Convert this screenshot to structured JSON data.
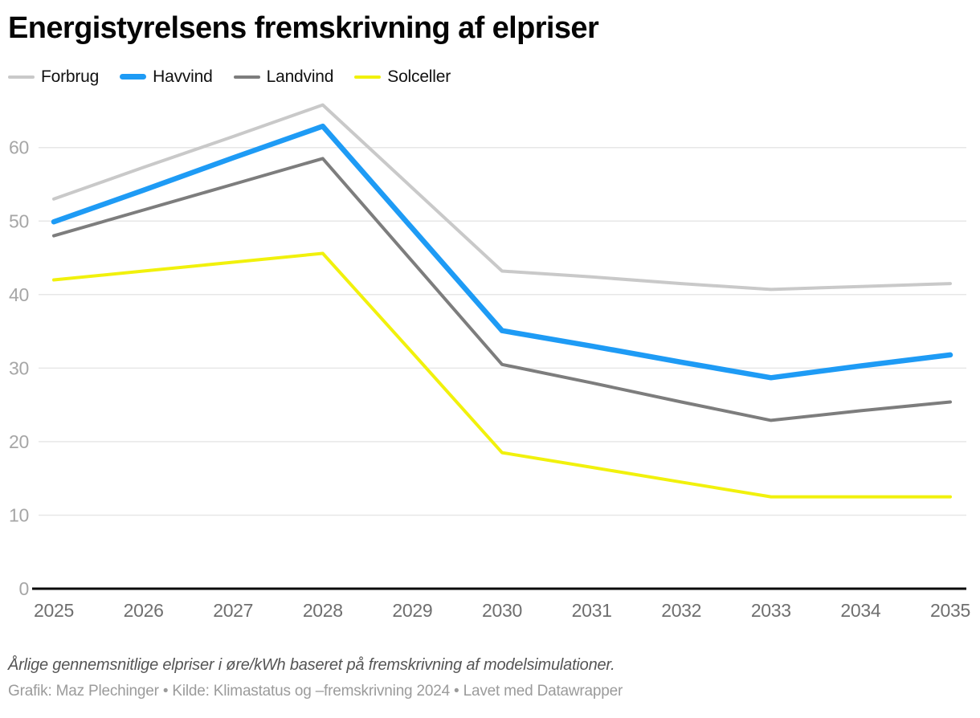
{
  "header": {
    "title": "Energistyrelsens fremskrivning af elpriser"
  },
  "chart_data": {
    "type": "line",
    "title": "Energistyrelsens fremskrivning af elpriser",
    "x": [
      2025,
      2026,
      2027,
      2028,
      2029,
      2030,
      2031,
      2032,
      2033,
      2034,
      2035
    ],
    "series": [
      {
        "name": "Forbrug",
        "color": "#c9c9c9",
        "stroke_width": 4,
        "values": [
          53.0,
          57.3,
          61.5,
          65.8,
          54.5,
          43.2,
          42.4,
          41.5,
          40.7,
          41.1,
          41.5
        ]
      },
      {
        "name": "Havvind",
        "color": "#1e9bf5",
        "stroke_width": 6.5,
        "values": [
          49.9,
          54.2,
          58.6,
          62.9,
          49.0,
          35.1,
          33.0,
          30.8,
          28.7,
          30.3,
          31.8
        ]
      },
      {
        "name": "Landvind",
        "color": "#7d7d7d",
        "stroke_width": 4,
        "values": [
          48.0,
          51.5,
          55.0,
          58.5,
          44.5,
          30.5,
          28.0,
          25.4,
          22.9,
          24.2,
          25.4
        ]
      },
      {
        "name": "Solceller",
        "color": "#f1f10c",
        "stroke_width": 4,
        "values": [
          42.0,
          43.2,
          44.4,
          45.6,
          32.1,
          18.5,
          16.5,
          14.5,
          12.5,
          12.5,
          12.5
        ]
      }
    ],
    "ylim": [
      0,
      66
    ],
    "yticks": [
      0,
      10,
      20,
      30,
      40,
      50,
      60
    ],
    "xlabel": "",
    "ylabel": "",
    "grid": true,
    "legend_position": "top"
  },
  "colors": {
    "grid_line": "#e7e7e7",
    "axis_line": "#0a0a0a",
    "ytick_label": "#a6a6a6",
    "xtick_label": "#6f6f6f"
  },
  "footer": {
    "note": "Årlige gennemsnitlige elpriser i øre/kWh baseret på fremskrivning af modelsimulationer.",
    "byline": "Grafik: Maz Plechinger • Kilde: Klimastatus og –fremskrivning 2024 • Lavet med Datawrapper"
  }
}
